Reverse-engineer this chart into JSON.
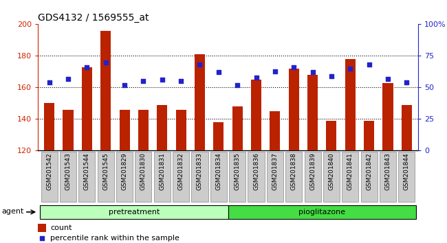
{
  "title": "GDS4132 / 1569555_at",
  "samples": [
    "GSM201542",
    "GSM201543",
    "GSM201544",
    "GSM201545",
    "GSM201829",
    "GSM201830",
    "GSM201831",
    "GSM201832",
    "GSM201833",
    "GSM201834",
    "GSM201835",
    "GSM201836",
    "GSM201837",
    "GSM201838",
    "GSM201839",
    "GSM201840",
    "GSM201841",
    "GSM201842",
    "GSM201843",
    "GSM201844"
  ],
  "counts": [
    150,
    146,
    173,
    196,
    146,
    146,
    149,
    146,
    181,
    138,
    148,
    165,
    145,
    172,
    168,
    139,
    178,
    139,
    163,
    149
  ],
  "percentiles": [
    54,
    57,
    66,
    70,
    52,
    55,
    56,
    55,
    68,
    62,
    52,
    58,
    63,
    66,
    62,
    59,
    65,
    68,
    57,
    54
  ],
  "group1_label": "pretreatment",
  "group2_label": "pioglitazone",
  "group1_count": 10,
  "agent_label": "agent",
  "bar_color": "#bb2200",
  "dot_color": "#2222cc",
  "ymin": 120,
  "ymax": 200,
  "yticks_left": [
    120,
    140,
    160,
    180,
    200
  ],
  "yticks_right": [
    0,
    25,
    50,
    75,
    100
  ],
  "yticklabels_right": [
    "0",
    "25",
    "50",
    "75",
    "100%"
  ],
  "background_color": "#ffffff",
  "bar_width": 0.55,
  "group1_color": "#bbffbb",
  "group2_color": "#44dd44",
  "tick_bg_color": "#cccccc",
  "tick_border_color": "#888888",
  "left_color": "#cc2200",
  "right_color": "#2222cc"
}
